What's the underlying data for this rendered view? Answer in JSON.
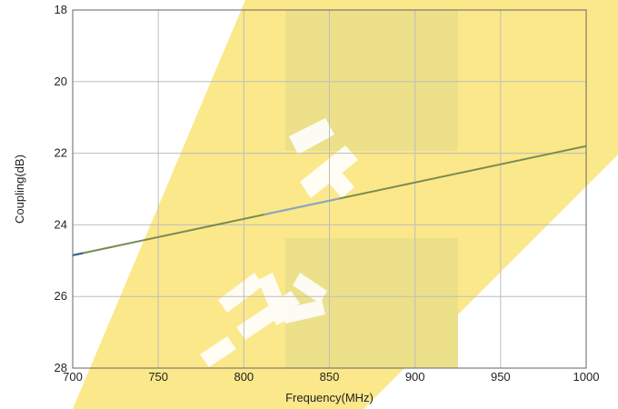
{
  "chart_data": {
    "type": "line",
    "title": "",
    "xlabel": "Frequency(MHz)",
    "ylabel": "Coupling(dB)",
    "xlim": [
      700,
      1000
    ],
    "ylim": [
      18,
      28
    ],
    "y_inverted": true,
    "grid": true,
    "x_ticks": [
      700,
      750,
      800,
      850,
      900,
      950,
      1000
    ],
    "y_ticks": [
      18,
      20,
      22,
      24,
      26,
      28
    ],
    "series": [
      {
        "x": [
          700,
          1000
        ],
        "y": [
          24.85,
          21.8
        ],
        "color": "#7a8a52"
      }
    ],
    "colors": {
      "watermark_bg": "#fbe88a",
      "watermark_band": "#ece08a",
      "watermark_text": "#ffffff",
      "line_segment_left": "#3a5d8f",
      "line_segment_mid": "#8aa6c8"
    }
  }
}
